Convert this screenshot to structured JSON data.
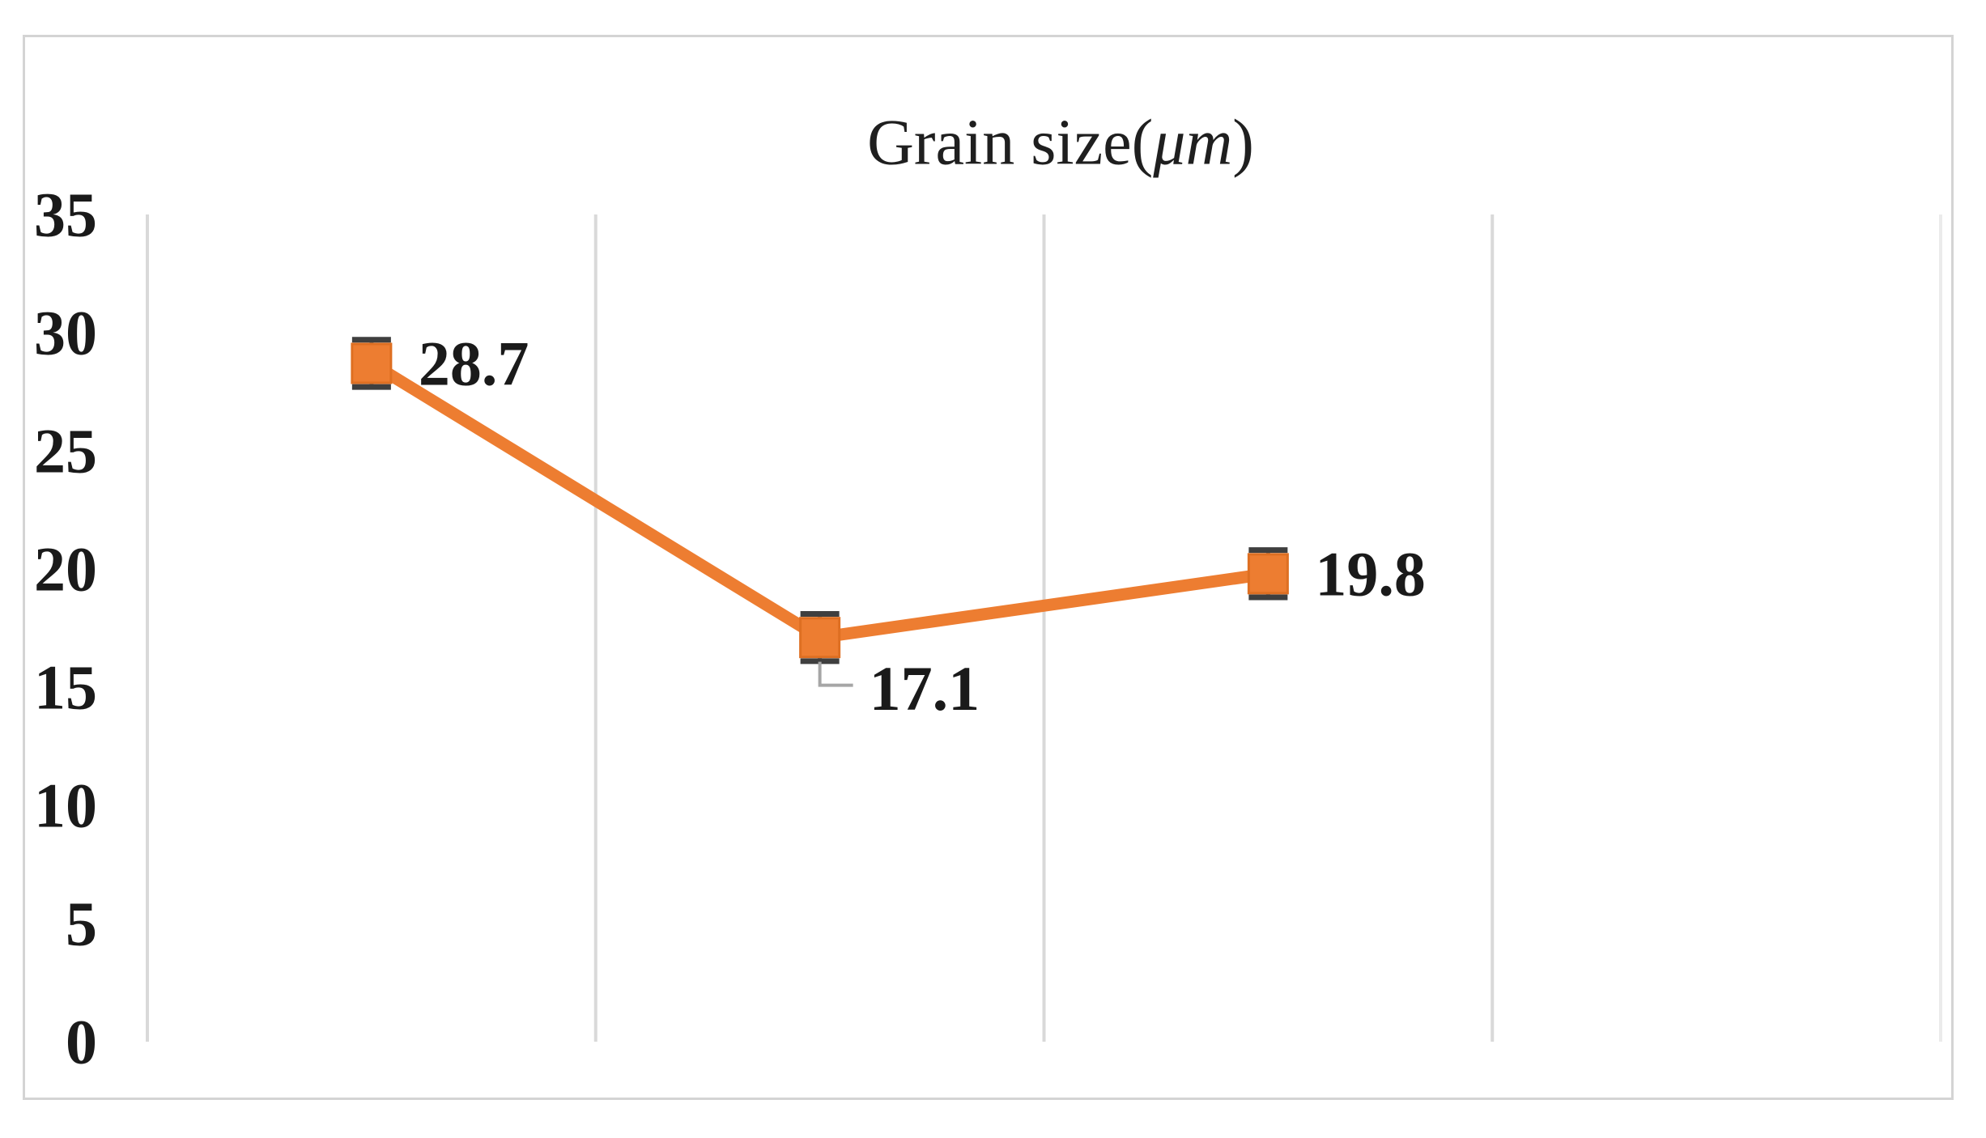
{
  "chart_data": {
    "type": "line",
    "title": "Grain size(μm)",
    "title_parts": {
      "prefix": "Grain size(",
      "italic": "μm",
      "suffix": ")"
    },
    "categories": [
      "",
      "",
      ""
    ],
    "series": [
      {
        "values": [
          28.7,
          17.1,
          19.8
        ],
        "data_labels": [
          "28.7",
          "17.1",
          "19.8"
        ],
        "label_positions": [
          "right",
          "below-right-leader",
          "right"
        ],
        "error_bar_plus_minus": 1.0,
        "color": "#ED7D31",
        "marker": "square"
      }
    ],
    "x_axis": {
      "tick_labels_visible": false,
      "gridlines_vertical": true,
      "category_slots": 4
    },
    "y_axis": {
      "min": 0,
      "max": 35,
      "tick_interval": 5,
      "tick_labels": [
        "35",
        "30",
        "25",
        "20",
        "15",
        "10",
        "5",
        "0"
      ],
      "gridlines_horizontal": false
    },
    "legend": "none"
  },
  "colors": {
    "series": "#ED7D31",
    "marker_edge": "#DE6F22",
    "gridline": "#D9D9D9",
    "gridline_faint": "#EBEBEB",
    "frame": "#D4D4D4",
    "text": "#1A1A1A",
    "error_bar_cap": "#3F3F3F",
    "error_bar_line": "#6C6C6C",
    "leader_line": "#A6A6A6"
  }
}
